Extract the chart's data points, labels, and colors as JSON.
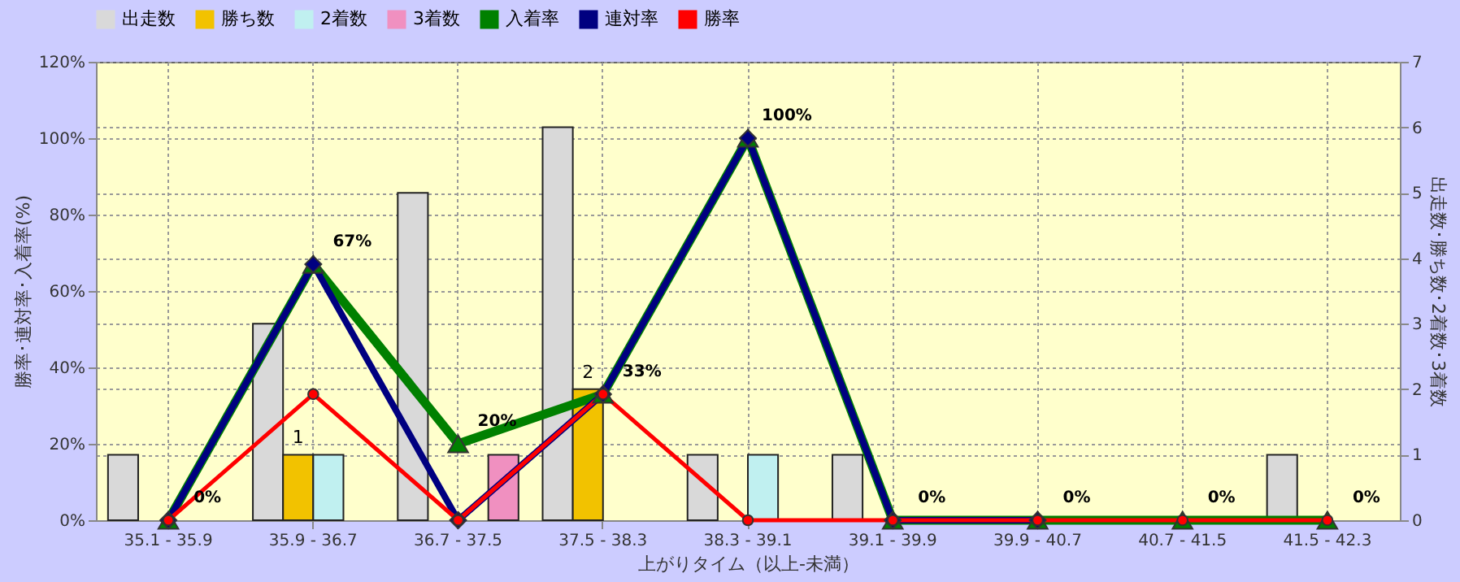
{
  "chart_data": {
    "type": "bar",
    "xlabel": "上がりタイム（以上-未満）",
    "ylabel": "勝率･連対率･入着率(%)",
    "y2label": "出走数･勝ち数･2着数･3着数",
    "categories": [
      "35.1 - 35.9",
      "35.9 - 36.7",
      "36.7 - 37.5",
      "37.5 - 38.3",
      "38.3 - 39.1",
      "39.1 - 39.9",
      "39.9 - 40.7",
      "40.7 - 41.5",
      "41.5 - 42.3"
    ],
    "series": [
      {
        "name": "出走数",
        "axis": "y2",
        "color": "#d9d9d9",
        "values": [
          1,
          3,
          5,
          6,
          1,
          1,
          0,
          0,
          1
        ]
      },
      {
        "name": "勝ち数",
        "axis": "y2",
        "color": "#f2c200",
        "values": [
          0,
          1,
          0,
          2,
          0,
          0,
          0,
          0,
          0
        ],
        "value_labels": [
          null,
          "1",
          null,
          "2",
          null,
          null,
          null,
          null,
          null
        ]
      },
      {
        "name": "2着数",
        "axis": "y2",
        "color": "#c0f0f0",
        "values": [
          0,
          1,
          0,
          0,
          1,
          0,
          0,
          0,
          0
        ]
      },
      {
        "name": "3着数",
        "axis": "y2",
        "color": "#f090c0",
        "values": [
          0,
          0,
          1,
          0,
          0,
          0,
          0,
          0,
          0
        ]
      },
      {
        "name": "入着率",
        "type": "line",
        "axis": "y",
        "color": "#008000",
        "marker": "triangle",
        "values": [
          0,
          67,
          20,
          33,
          100,
          0,
          0,
          0,
          0
        ],
        "value_labels": [
          "0%",
          "67%",
          "20%",
          "33%",
          "100%",
          "0%",
          "0%",
          "0%",
          "0%"
        ]
      },
      {
        "name": "連対率",
        "type": "line",
        "axis": "y",
        "color": "#000080",
        "marker": "diamond",
        "values": [
          0,
          67,
          0,
          33,
          100,
          0,
          0,
          null,
          null
        ]
      },
      {
        "name": "勝率",
        "type": "line",
        "axis": "y",
        "color": "#ff0000",
        "marker": "circle",
        "values": [
          0,
          33,
          0,
          33,
          0,
          0,
          0,
          0,
          0
        ]
      }
    ],
    "ylim": [
      0,
      120
    ],
    "yticks": [
      {
        "value": 0,
        "label": "0%"
      },
      {
        "value": 20,
        "label": "20%"
      },
      {
        "value": 40,
        "label": "40%"
      },
      {
        "value": 60,
        "label": "60%"
      },
      {
        "value": 80,
        "label": "80%"
      },
      {
        "value": 100,
        "label": "100%"
      },
      {
        "value": 120,
        "label": "120%"
      }
    ],
    "y2lim": [
      0,
      7
    ],
    "y2ticks": [
      0,
      1,
      2,
      3,
      4,
      5,
      6,
      7
    ],
    "grid": true,
    "legend": "top left"
  }
}
